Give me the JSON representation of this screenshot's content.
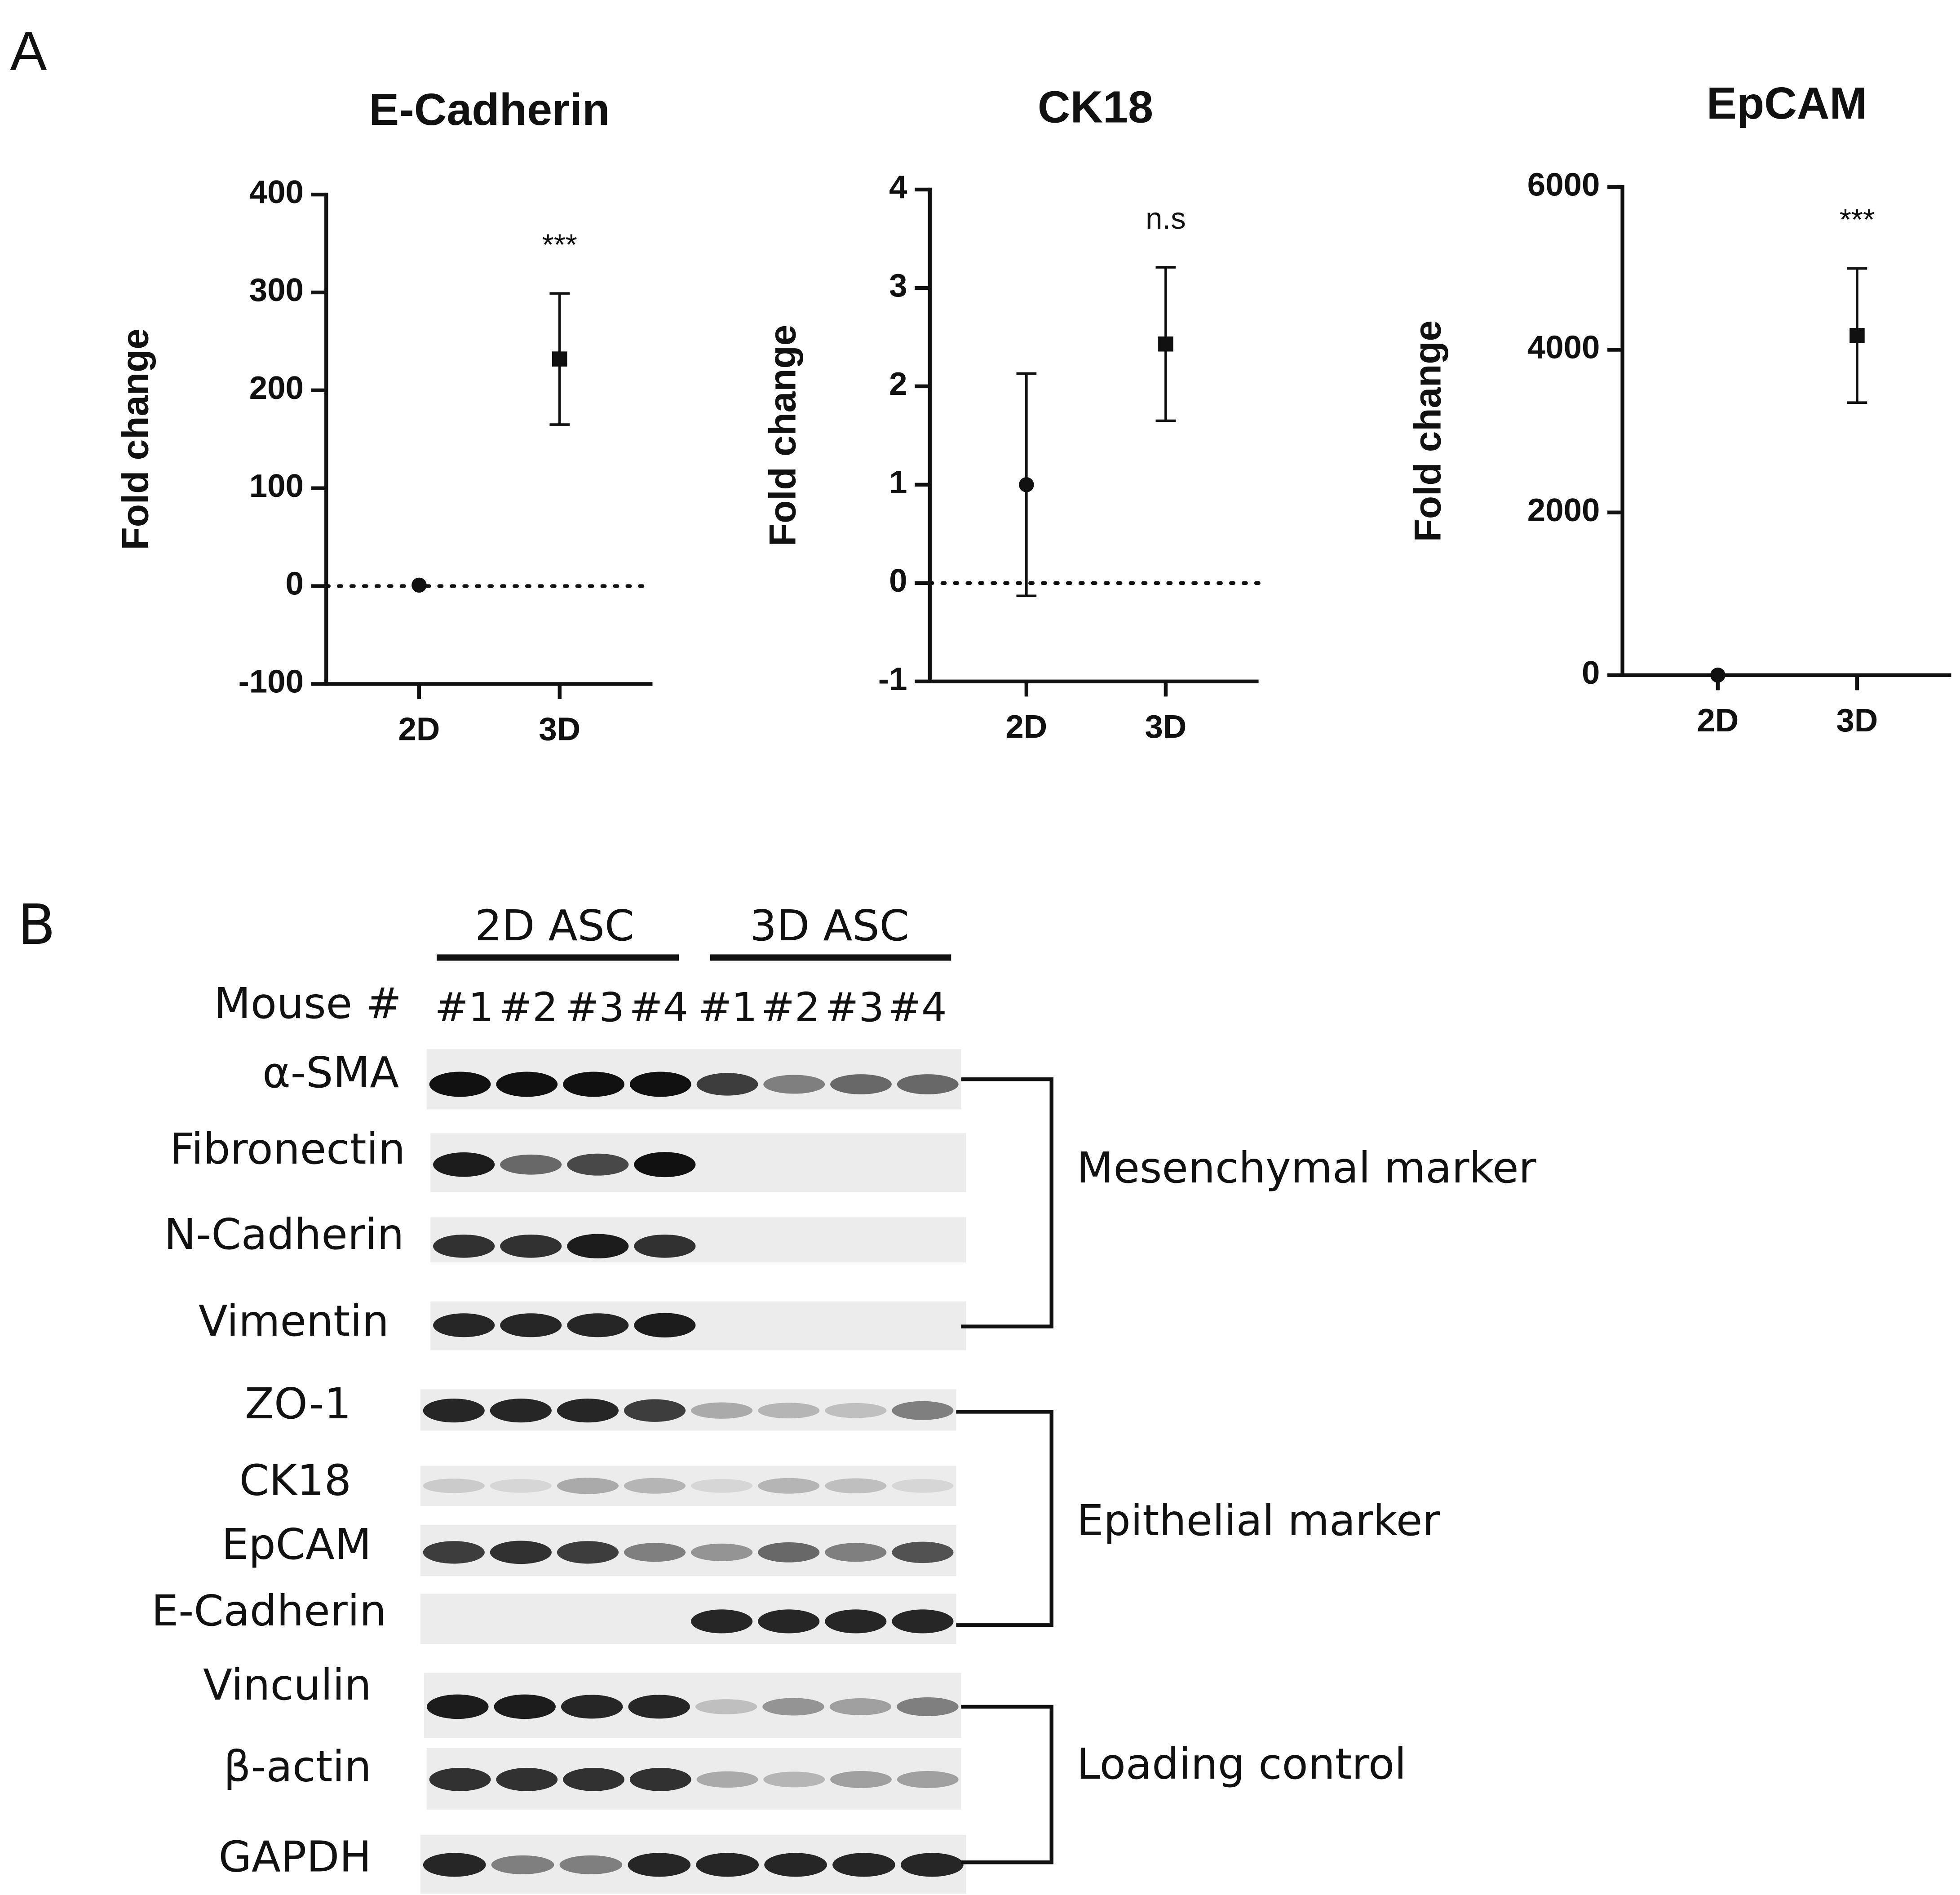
{
  "panel_a": {
    "label": "A"
  },
  "chart_data": [
    {
      "type": "errorbar",
      "title": "E-Cadherin",
      "y_label": "Fold change",
      "categories": [
        "2D",
        "3D"
      ],
      "values": [
        1,
        232
      ],
      "errors": [
        null,
        67
      ],
      "markers": [
        "circle",
        "square"
      ],
      "color": "#111111",
      "ylim": [
        -100,
        400
      ],
      "yticks": [
        -100,
        0,
        100,
        200,
        300,
        400
      ],
      "hline": 0,
      "annotations": [
        null,
        "***"
      ]
    },
    {
      "type": "errorbar",
      "title": "CK18",
      "y_label": "Fold change",
      "categories": [
        "2D",
        "3D"
      ],
      "values": [
        1,
        2.43
      ],
      "errors": [
        1.13,
        0.78
      ],
      "markers": [
        "circle",
        "square"
      ],
      "color": "#111111",
      "ylim": [
        -1,
        4
      ],
      "yticks": [
        -1,
        0,
        1,
        2,
        3,
        4
      ],
      "hline": 0,
      "annotations": [
        null,
        "n.s"
      ]
    },
    {
      "type": "errorbar",
      "title": "EpCAM",
      "y_label": "Fold change",
      "categories": [
        "2D",
        "3D"
      ],
      "values": [
        1,
        4175
      ],
      "errors": [
        null,
        825
      ],
      "markers": [
        "circle",
        "square"
      ],
      "color": "#111111",
      "ylim": [
        0,
        6000
      ],
      "yticks": [
        0,
        2000,
        4000,
        6000
      ],
      "annotations": [
        null,
        "***"
      ]
    }
  ],
  "panel_b": {
    "label": "B",
    "groups": [
      "2D ASC",
      "3D ASC"
    ],
    "lane_header": "Mouse #",
    "lanes": [
      "#1",
      "#2",
      "#3",
      "#4",
      "#1",
      "#2",
      "#3",
      "#4"
    ],
    "rows": [
      "α-SMA",
      "Fibronectin",
      "N-Cadherin",
      "Vimentin",
      "ZO-1",
      "CK18",
      "EpCAM",
      "E-Cadherin",
      "Vinculin",
      "β-actin",
      "GAPDH"
    ],
    "brackets": [
      "Mesenchymal marker",
      "Epithelial marker",
      "Loading control"
    ]
  }
}
